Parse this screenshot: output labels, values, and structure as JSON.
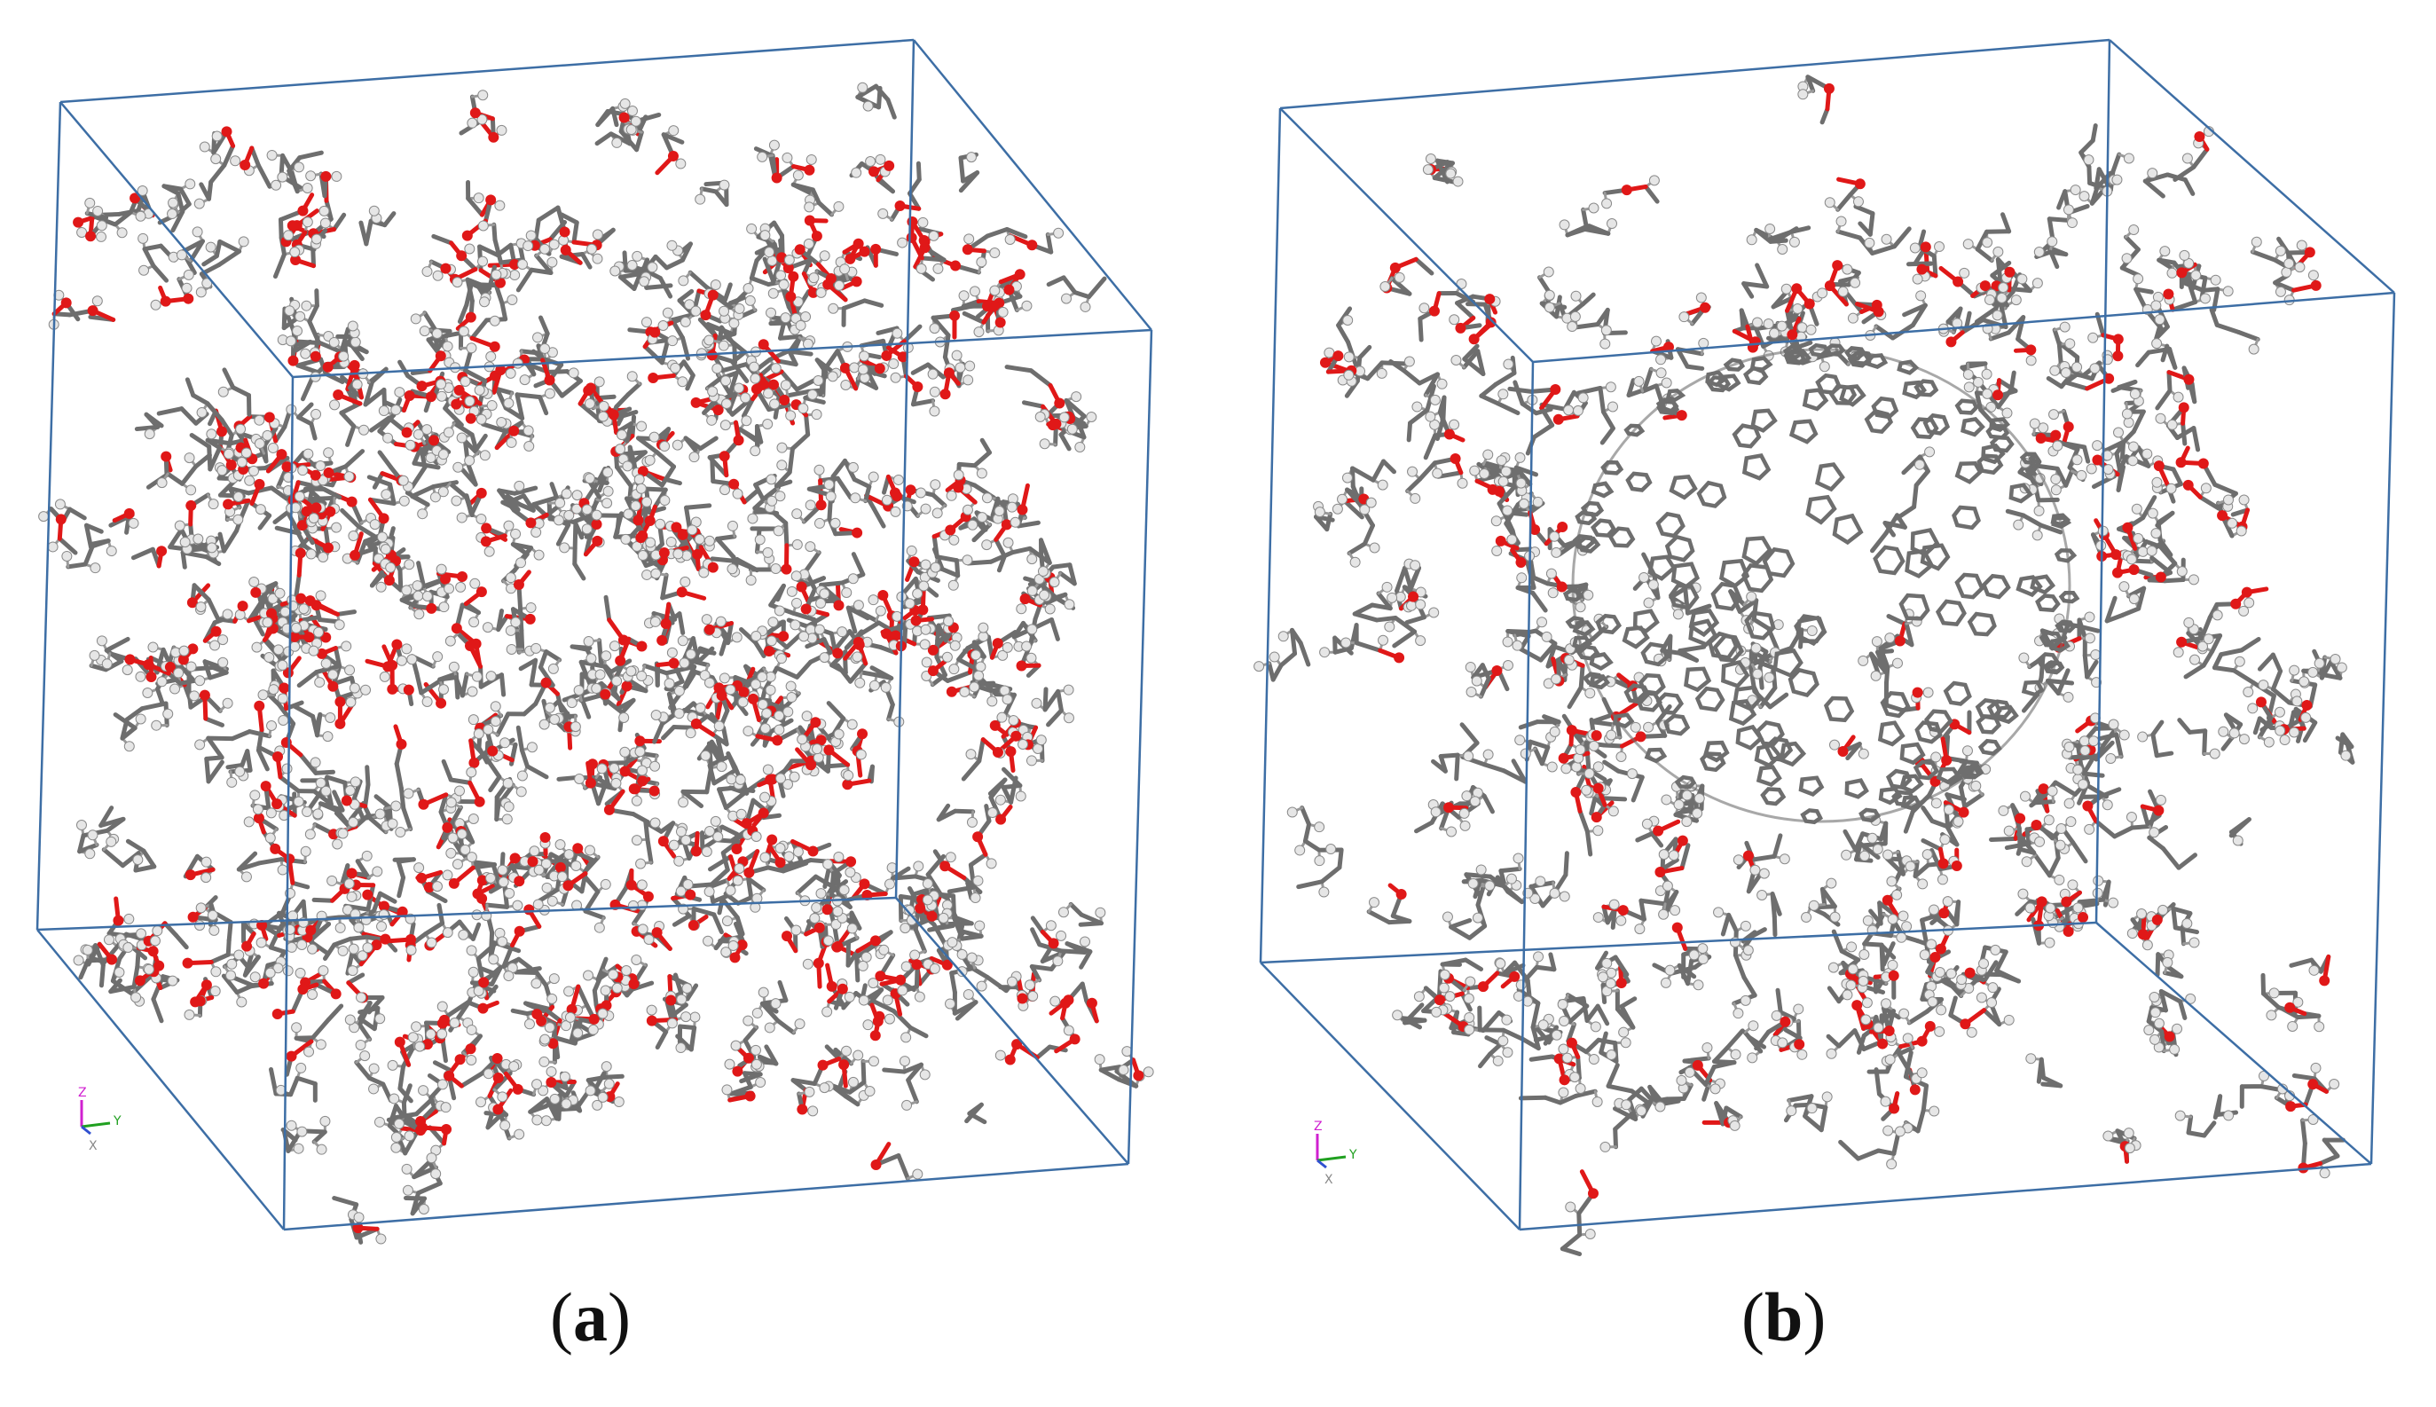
{
  "panels": [
    {
      "id": "a",
      "caption_letter": "a",
      "axes": {
        "z": "Z",
        "y": "Y",
        "x": "X"
      },
      "colors": {
        "box": "#3d6ea5",
        "carbon": "#6e6e6e",
        "oxygen": "#e01818",
        "hydrogen": "#e6e6e6"
      }
    },
    {
      "id": "b",
      "caption_letter": "b",
      "axes": {
        "z": "Z",
        "y": "Y",
        "x": "X"
      },
      "colors": {
        "box": "#3d6ea5",
        "carbon": "#6e6e6e",
        "oxygen": "#e01818",
        "hydrogen": "#e6e6e6"
      }
    }
  ]
}
